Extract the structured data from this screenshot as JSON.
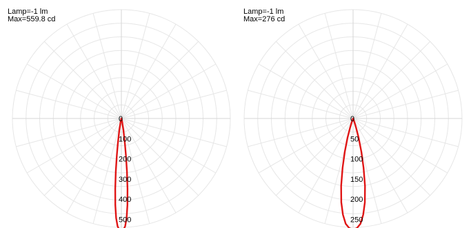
{
  "chart_data": [
    {
      "type": "polar",
      "info": {
        "lamp": "Lamp=-1 lm",
        "max": "Max=559.8 cd"
      },
      "radial_ticks": [
        0,
        100,
        200,
        300,
        400,
        500
      ],
      "r_max": 540,
      "grid": true,
      "curve": {
        "color": "#e01616",
        "angles": [
          0,
          1,
          2,
          3,
          4,
          5,
          6,
          7,
          8,
          10,
          12,
          15,
          20
        ],
        "values": [
          559.8,
          555,
          535,
          495,
          430,
          350,
          265,
          185,
          125,
          60,
          25,
          6,
          0
        ]
      }
    },
    {
      "type": "polar",
      "info": {
        "lamp": "Lamp=-1 lm",
        "max": "Max=276 cd"
      },
      "radial_ticks": [
        0,
        50,
        100,
        150,
        200,
        250
      ],
      "r_max": 270,
      "grid": true,
      "curve": {
        "color": "#e01616",
        "angles": [
          0,
          2,
          4,
          6,
          8,
          10,
          12,
          14,
          16,
          18,
          20,
          22,
          25
        ],
        "values": [
          276,
          272,
          262,
          240,
          210,
          170,
          125,
          85,
          50,
          25,
          10,
          3,
          0
        ]
      }
    }
  ]
}
